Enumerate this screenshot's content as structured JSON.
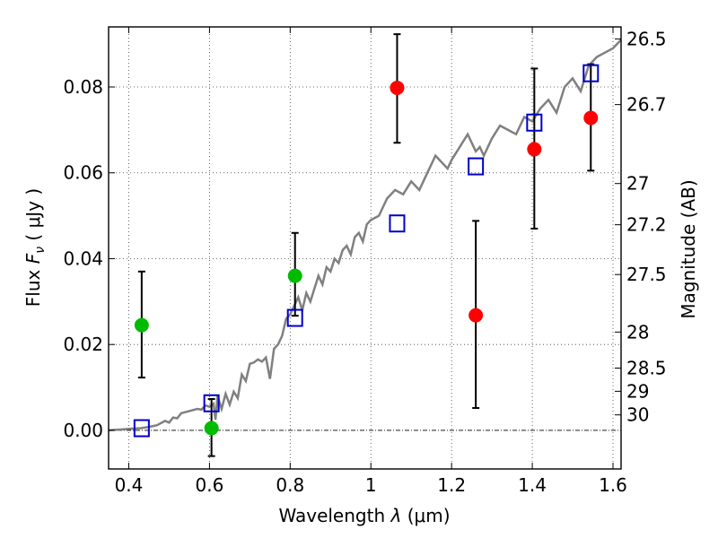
{
  "chart_data": {
    "type": "scatter",
    "xlabel_text": "Wavelength",
    "xlabel_symbol": "λ",
    "xlabel_unit": "(μm)",
    "ylabel_text": "Flux",
    "ylabel_symbol_main": "F",
    "ylabel_symbol_sub": "ν",
    "ylabel_unit": "( μJy )",
    "y2label": "Magnitude (AB)",
    "xlim": [
      0.35,
      1.62
    ],
    "ylim": [
      -0.009,
      0.094
    ],
    "grid": true,
    "x_ticks": [
      0.4,
      0.6,
      0.8,
      1.0,
      1.2,
      1.4,
      1.6
    ],
    "x_tick_labels": [
      "0.4",
      "0.6",
      "0.8",
      "1",
      "1.2",
      "1.4",
      "1.6"
    ],
    "y_ticks": [
      0.0,
      0.02,
      0.04,
      0.06,
      0.08
    ],
    "y_tick_labels": [
      "0.00",
      "0.02",
      "0.04",
      "0.06",
      "0.08"
    ],
    "y2_ticks": [
      {
        "label": "26.5",
        "flux": 0.0912
      },
      {
        "label": "26.7",
        "flux": 0.0759
      },
      {
        "label": "27",
        "flux": 0.0575
      },
      {
        "label": "27.2",
        "flux": 0.0479
      },
      {
        "label": "27.5",
        "flux": 0.0363
      },
      {
        "label": "28",
        "flux": 0.0229
      },
      {
        "label": "28.5",
        "flux": 0.0145
      },
      {
        "label": "29",
        "flux": 0.0091
      },
      {
        "label": "30",
        "flux": 0.0036
      }
    ],
    "series": [
      {
        "marker": "line",
        "color": "#808080",
        "x": [
          0.35,
          0.38,
          0.41,
          0.43,
          0.45,
          0.47,
          0.49,
          0.5,
          0.51,
          0.52,
          0.53,
          0.55,
          0.57,
          0.58,
          0.59,
          0.6,
          0.61,
          0.615,
          0.62,
          0.63,
          0.64,
          0.65,
          0.66,
          0.67,
          0.68,
          0.69,
          0.7,
          0.71,
          0.72,
          0.73,
          0.74,
          0.75,
          0.76,
          0.77,
          0.78,
          0.79,
          0.8,
          0.81,
          0.82,
          0.83,
          0.84,
          0.85,
          0.86,
          0.87,
          0.88,
          0.89,
          0.9,
          0.91,
          0.92,
          0.93,
          0.94,
          0.95,
          0.96,
          0.97,
          0.98,
          0.99,
          1.0,
          1.02,
          1.04,
          1.06,
          1.08,
          1.1,
          1.12,
          1.14,
          1.16,
          1.18,
          1.19,
          1.2,
          1.22,
          1.24,
          1.26,
          1.27,
          1.28,
          1.3,
          1.32,
          1.34,
          1.36,
          1.38,
          1.4,
          1.42,
          1.44,
          1.46,
          1.48,
          1.5,
          1.52,
          1.54,
          1.56,
          1.58,
          1.6,
          1.62
        ],
        "y": [
          0.0,
          0.0002,
          0.0004,
          0.0005,
          0.0008,
          0.0012,
          0.0022,
          0.0018,
          0.003,
          0.0028,
          0.004,
          0.0045,
          0.005,
          0.0048,
          0.0058,
          0.0055,
          0.0062,
          0.0025,
          0.008,
          0.005,
          0.0085,
          0.006,
          0.009,
          0.0075,
          0.013,
          0.0115,
          0.0155,
          0.0158,
          0.0165,
          0.016,
          0.017,
          0.012,
          0.019,
          0.02,
          0.022,
          0.026,
          0.027,
          0.029,
          0.031,
          0.028,
          0.032,
          0.03,
          0.033,
          0.036,
          0.034,
          0.038,
          0.037,
          0.04,
          0.039,
          0.042,
          0.043,
          0.041,
          0.045,
          0.046,
          0.044,
          0.048,
          0.049,
          0.05,
          0.054,
          0.056,
          0.055,
          0.058,
          0.056,
          0.06,
          0.064,
          0.062,
          0.061,
          0.063,
          0.066,
          0.069,
          0.065,
          0.066,
          0.064,
          0.068,
          0.071,
          0.07,
          0.069,
          0.073,
          0.072,
          0.075,
          0.077,
          0.074,
          0.08,
          0.082,
          0.079,
          0.085,
          0.087,
          0.088,
          0.089,
          0.091
        ]
      },
      {
        "marker": "circle",
        "color": "#00bb00",
        "x": [
          0.432,
          0.605,
          0.812
        ],
        "y": [
          0.0245,
          0.0005,
          0.036
        ],
        "yerr_low": [
          0.0122,
          0.0065,
          0.0093
        ],
        "yerr_high": [
          0.0125,
          0.0068,
          0.01
        ]
      },
      {
        "marker": "circle",
        "color": "#ff0000",
        "x": [
          1.065,
          1.26,
          1.405,
          1.545
        ],
        "y": [
          0.0798,
          0.0268,
          0.0655,
          0.0728
        ],
        "yerr_low": [
          0.0128,
          0.0216,
          0.0185,
          0.0123
        ],
        "yerr_high": [
          0.0125,
          0.022,
          0.0188,
          0.0125
        ]
      },
      {
        "marker": "square-open",
        "color": "#0000cc",
        "x": [
          0.432,
          0.605,
          0.812,
          1.065,
          1.26,
          1.405,
          1.545
        ],
        "y": [
          0.0005,
          0.0063,
          0.0262,
          0.0482,
          0.0615,
          0.0717,
          0.0832
        ]
      }
    ]
  }
}
